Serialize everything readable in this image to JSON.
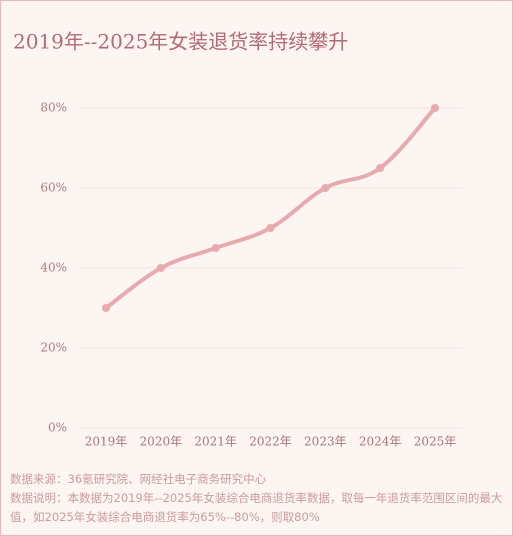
{
  "chart_data": {
    "type": "line",
    "title": "2019年--2025年女装退货率持续攀升",
    "categories": [
      "2019年",
      "2020年",
      "2021年",
      "2022年",
      "2023年",
      "2024年",
      "2025年"
    ],
    "series": [
      {
        "name": "女装退货率",
        "color": "#e8aaae",
        "values": [
          30,
          40,
          45,
          50,
          60,
          65,
          80
        ]
      }
    ],
    "ylim": [
      0,
      80
    ],
    "yticks": [
      {
        "value": 0,
        "label": "0%"
      },
      {
        "value": 20,
        "label": "20%"
      },
      {
        "value": 40,
        "label": "40%"
      },
      {
        "value": 60,
        "label": "60%"
      },
      {
        "value": 80,
        "label": "80%"
      }
    ],
    "grid": true,
    "notes": [
      "数据来源：36氪研究院、网经社电子商务研究中心",
      "数据说明：本数据为2019年--2025年女装综合电商退货率数据，取每一年退货率范围区间的最大值，如2025年女装综合电商退货率为65%--80%，则取80%"
    ]
  }
}
